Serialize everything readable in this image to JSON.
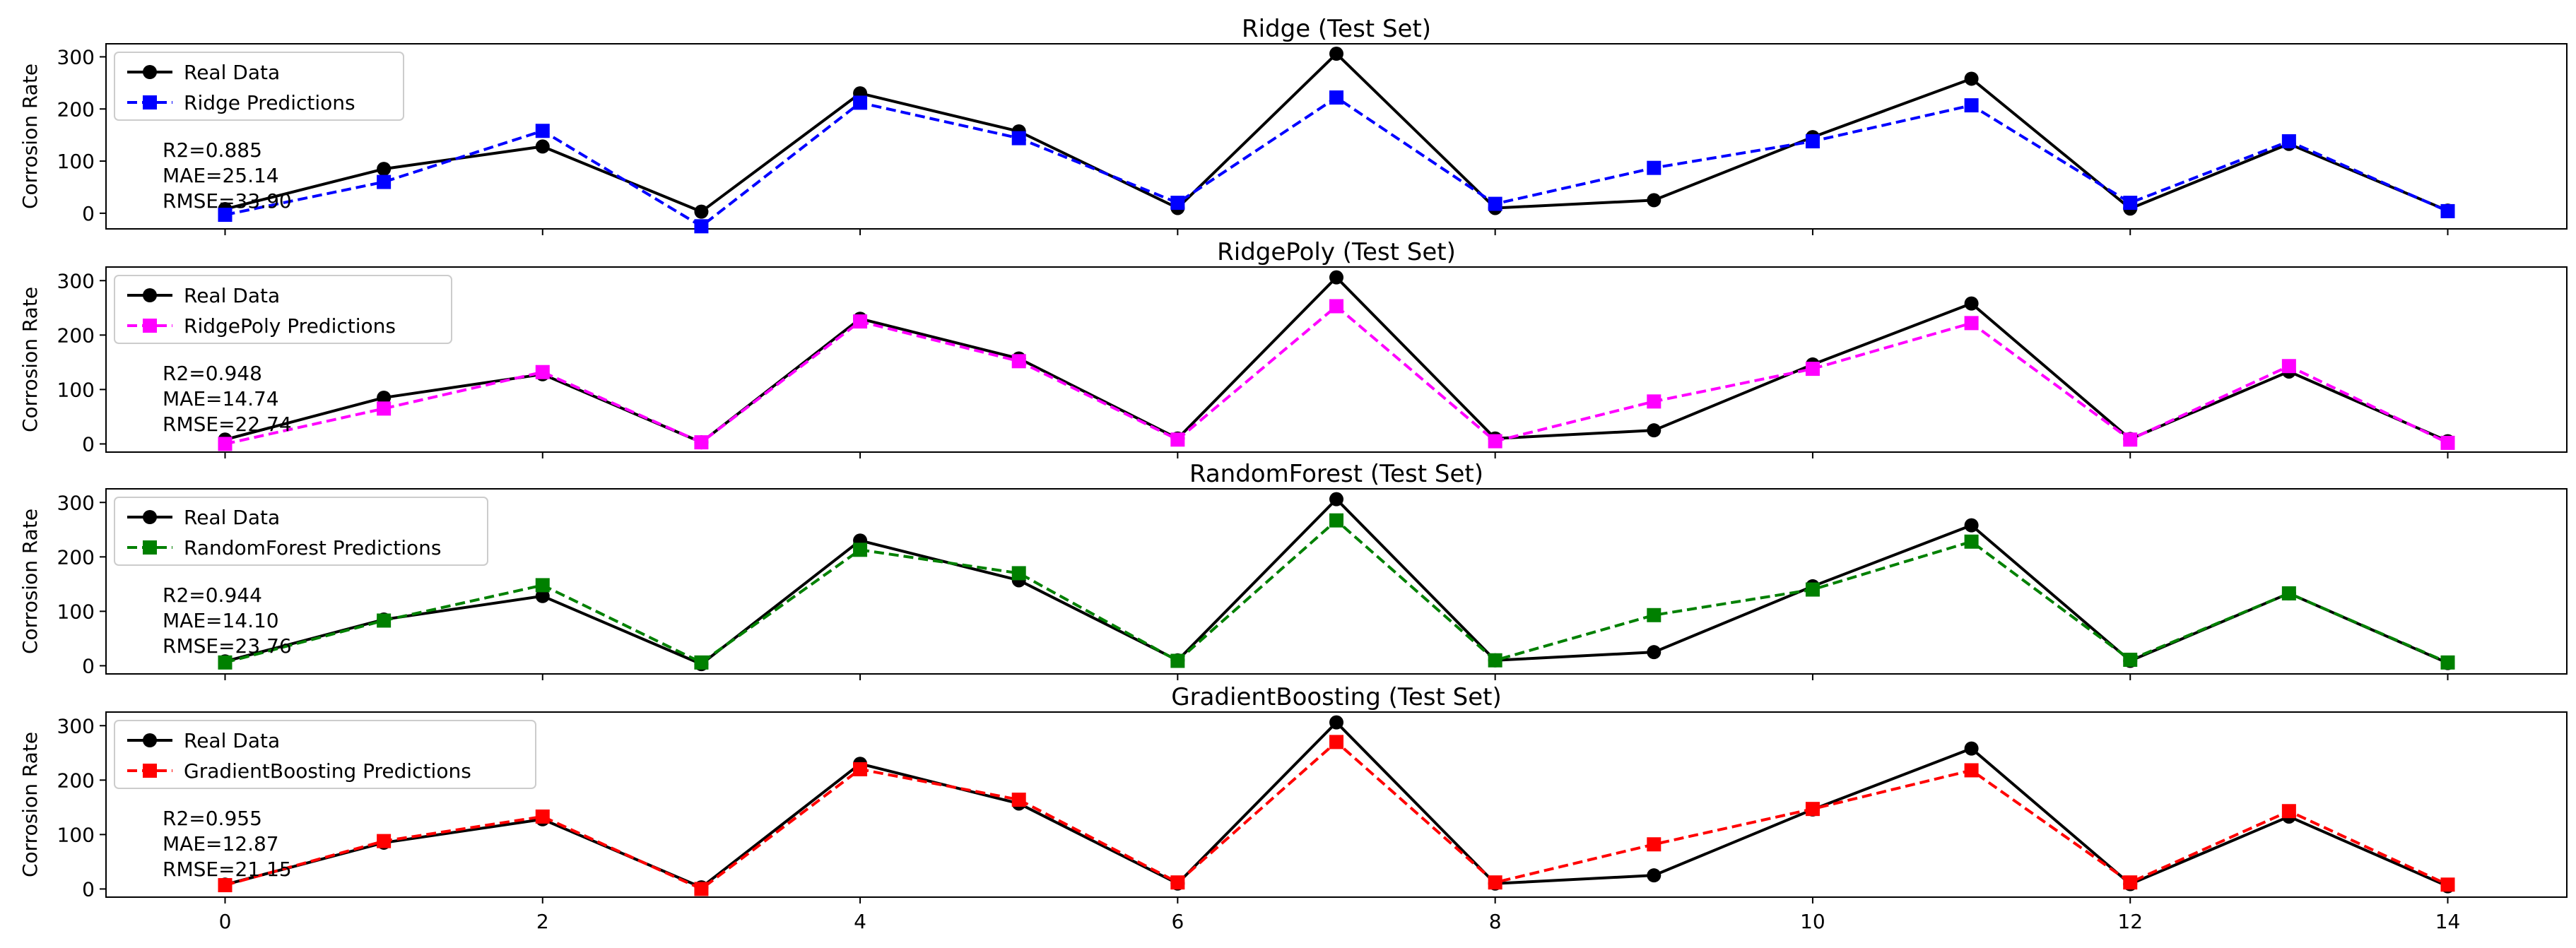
{
  "chart_data": [
    {
      "type": "line",
      "title": "Ridge (Test Set)",
      "ylabel": "Corrosion Rate",
      "xlabel": "",
      "ylim": [
        -30,
        325
      ],
      "xlim": [
        -0.75,
        14.75
      ],
      "yticks": [
        0,
        100,
        200,
        300
      ],
      "xticks": [
        0,
        2,
        4,
        6,
        8,
        10,
        12,
        14
      ],
      "show_xtick_labels": false,
      "legend_position": "top-left",
      "metrics": [
        "R2=0.885",
        "MAE=25.14",
        "RMSE=33.90"
      ],
      "x": [
        0,
        1,
        2,
        3,
        4,
        5,
        6,
        7,
        8,
        9,
        10,
        11,
        12,
        13,
        14
      ],
      "series": [
        {
          "name": "Real Data",
          "color": "#000000",
          "style": "solid",
          "marker": "circle",
          "values": [
            8,
            85,
            128,
            3,
            230,
            157,
            10,
            306,
            10,
            25,
            146,
            258,
            9,
            133,
            5
          ]
        },
        {
          "name": "Ridge Predictions",
          "color": "#0000ff",
          "style": "dashed",
          "marker": "square",
          "values": [
            -3,
            60,
            158,
            -25,
            212,
            144,
            20,
            222,
            18,
            87,
            138,
            207,
            20,
            138,
            4
          ]
        }
      ]
    },
    {
      "type": "line",
      "title": "RidgePoly (Test Set)",
      "ylabel": "Corrosion Rate",
      "xlabel": "",
      "ylim": [
        -15,
        325
      ],
      "xlim": [
        -0.75,
        14.75
      ],
      "yticks": [
        0,
        100,
        200,
        300
      ],
      "xticks": [
        0,
        2,
        4,
        6,
        8,
        10,
        12,
        14
      ],
      "show_xtick_labels": false,
      "legend_position": "top-left",
      "metrics": [
        "R2=0.948",
        "MAE=14.74",
        "RMSE=22.74"
      ],
      "x": [
        0,
        1,
        2,
        3,
        4,
        5,
        6,
        7,
        8,
        9,
        10,
        11,
        12,
        13,
        14
      ],
      "series": [
        {
          "name": "Real Data",
          "color": "#000000",
          "style": "solid",
          "marker": "circle",
          "values": [
            8,
            85,
            128,
            3,
            230,
            157,
            10,
            306,
            10,
            25,
            146,
            258,
            9,
            133,
            5
          ]
        },
        {
          "name": "RidgePoly Predictions",
          "color": "#ff00ff",
          "style": "dashed",
          "marker": "square",
          "values": [
            0,
            65,
            132,
            3,
            225,
            152,
            8,
            253,
            5,
            78,
            138,
            222,
            8,
            143,
            2
          ]
        }
      ]
    },
    {
      "type": "line",
      "title": "RandomForest (Test Set)",
      "ylabel": "Corrosion Rate",
      "xlabel": "",
      "ylim": [
        -15,
        325
      ],
      "xlim": [
        -0.75,
        14.75
      ],
      "yticks": [
        0,
        100,
        200,
        300
      ],
      "xticks": [
        0,
        2,
        4,
        6,
        8,
        10,
        12,
        14
      ],
      "show_xtick_labels": false,
      "legend_position": "top-left",
      "metrics": [
        "R2=0.944",
        "MAE=14.10",
        "RMSE=23.76"
      ],
      "x": [
        0,
        1,
        2,
        3,
        4,
        5,
        6,
        7,
        8,
        9,
        10,
        11,
        12,
        13,
        14
      ],
      "series": [
        {
          "name": "Real Data",
          "color": "#000000",
          "style": "solid",
          "marker": "circle",
          "values": [
            8,
            85,
            128,
            3,
            230,
            157,
            10,
            306,
            10,
            25,
            146,
            258,
            9,
            133,
            5
          ]
        },
        {
          "name": "RandomForest Predictions",
          "color": "#008000",
          "style": "dashed",
          "marker": "square",
          "values": [
            6,
            83,
            148,
            6,
            213,
            170,
            9,
            267,
            10,
            93,
            140,
            228,
            11,
            133,
            6
          ]
        }
      ]
    },
    {
      "type": "line",
      "title": "GradientBoosting (Test Set)",
      "ylabel": "Corrosion Rate",
      "xlabel": "",
      "ylim": [
        -15,
        325
      ],
      "xlim": [
        -0.75,
        14.75
      ],
      "yticks": [
        0,
        100,
        200,
        300
      ],
      "xticks": [
        0,
        2,
        4,
        6,
        8,
        10,
        12,
        14
      ],
      "show_xtick_labels": true,
      "legend_position": "top-left",
      "metrics": [
        "R2=0.955",
        "MAE=12.87",
        "RMSE=21.15"
      ],
      "x": [
        0,
        1,
        2,
        3,
        4,
        5,
        6,
        7,
        8,
        9,
        10,
        11,
        12,
        13,
        14
      ],
      "series": [
        {
          "name": "Real Data",
          "color": "#000000",
          "style": "solid",
          "marker": "circle",
          "values": [
            8,
            85,
            128,
            3,
            230,
            157,
            10,
            306,
            10,
            25,
            146,
            258,
            9,
            133,
            5
          ]
        },
        {
          "name": "GradientBoosting Predictions",
          "color": "#ff0000",
          "style": "dashed",
          "marker": "square",
          "values": [
            7,
            88,
            133,
            0,
            220,
            164,
            12,
            270,
            12,
            82,
            147,
            218,
            12,
            143,
            8
          ]
        }
      ]
    }
  ]
}
